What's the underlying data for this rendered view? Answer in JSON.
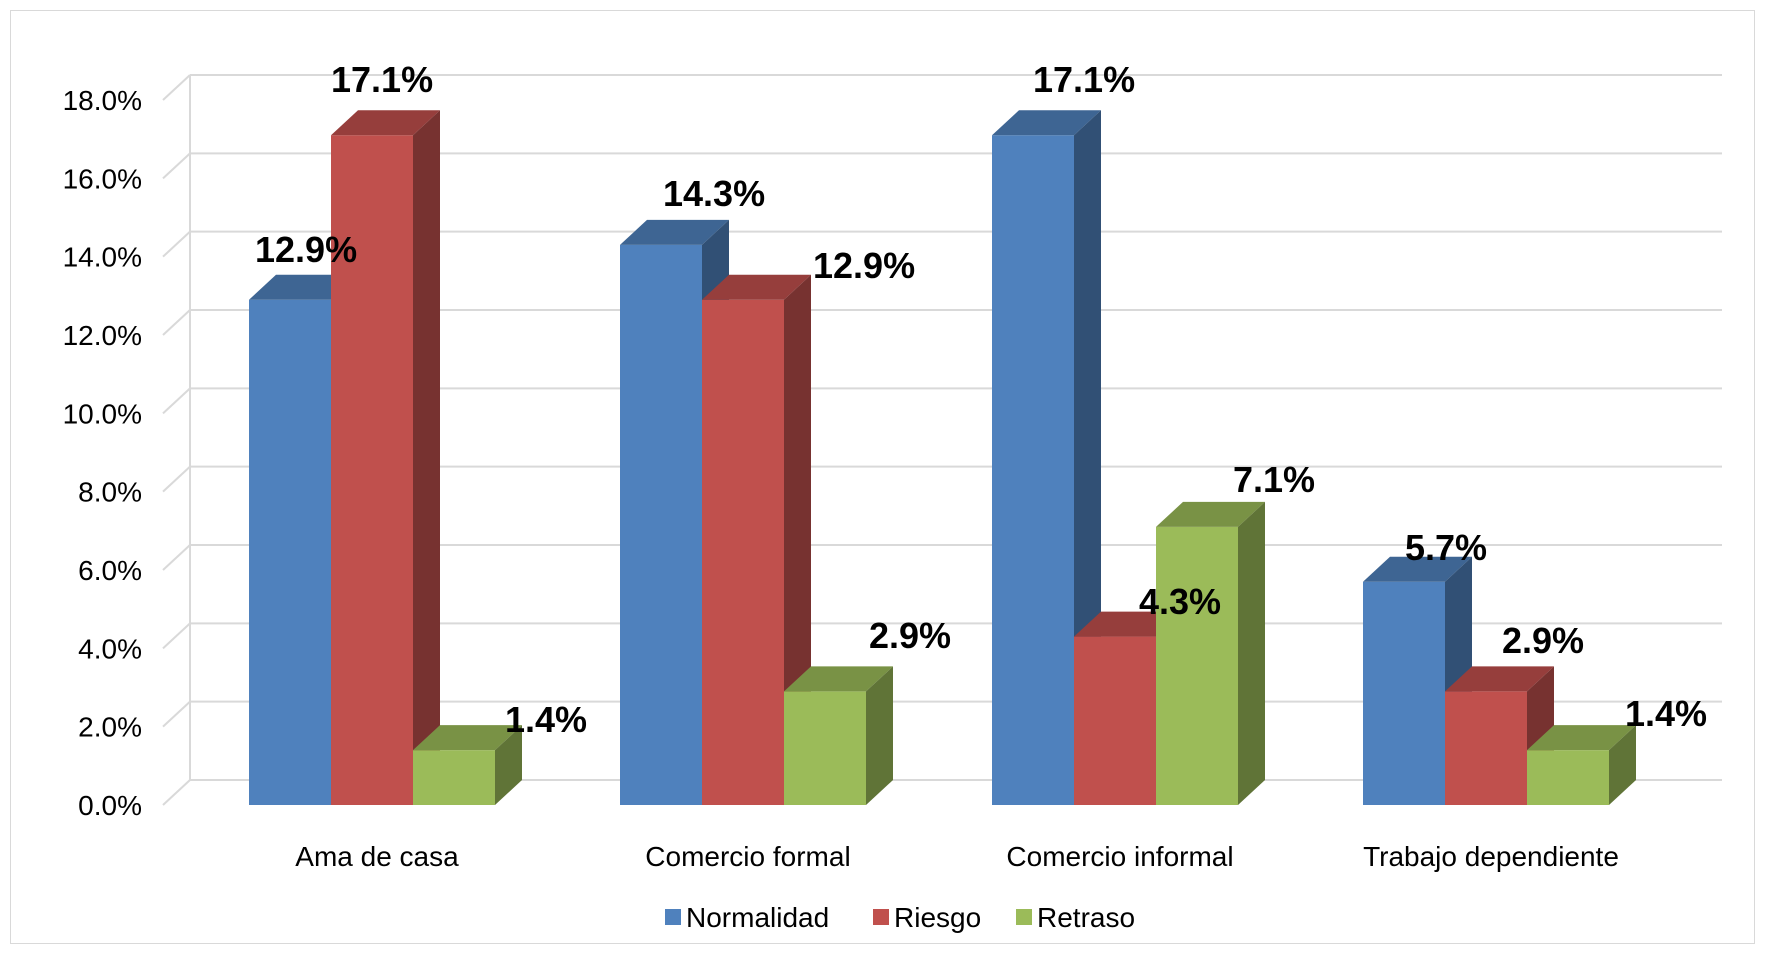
{
  "chart_data": {
    "type": "bar",
    "style": "3d-clustered-column",
    "categories": [
      "Ama de casa",
      "Comercio formal",
      "Comercio informal",
      "Trabajo dependiente"
    ],
    "series": [
      {
        "name": "Normalidad",
        "color": "#4f81bd",
        "values": [
          12.9,
          14.3,
          17.1,
          5.7
        ],
        "labels": [
          "12.9%",
          "14.3%",
          "17.1%",
          "5.7%"
        ]
      },
      {
        "name": "Riesgo",
        "color": "#c0504d",
        "values": [
          17.1,
          12.9,
          4.3,
          2.9
        ],
        "labels": [
          "17.1%",
          "12.9%",
          "4.3%",
          "2.9%"
        ]
      },
      {
        "name": "Retraso",
        "color": "#9bbb59",
        "values": [
          1.4,
          2.9,
          7.1,
          1.4
        ],
        "labels": [
          "1.4%",
          "2.9%",
          "7.1%",
          "1.4%"
        ]
      }
    ],
    "ylim": [
      0,
      18
    ],
    "yticks": [
      "0.0%",
      "2.0%",
      "4.0%",
      "6.0%",
      "8.0%",
      "10.0%",
      "12.0%",
      "14.0%",
      "16.0%",
      "18.0%"
    ],
    "grid": true,
    "legend": "bottom"
  }
}
